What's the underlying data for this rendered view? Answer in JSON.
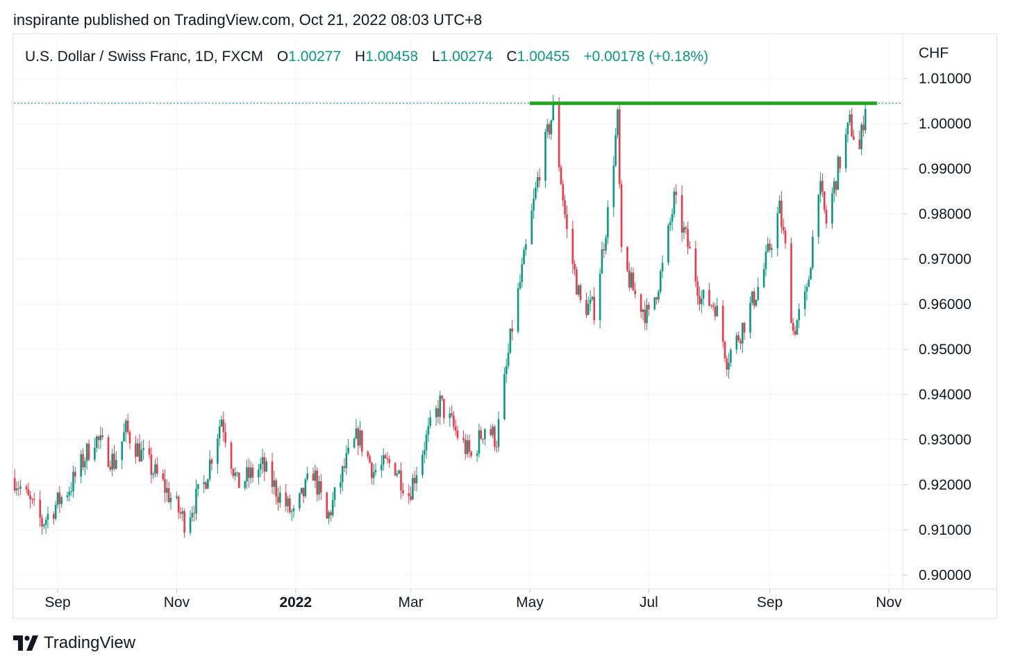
{
  "header": {
    "published_text": "inspirante published on TradingView.com, Oct 21, 2022 08:03 UTC+8"
  },
  "legend": {
    "symbol": "U.S. Dollar / Swiss Franc, 1D, FXCM",
    "open_label": "O",
    "open_value": "1.00277",
    "high_label": "H",
    "high_value": "1.00458",
    "low_label": "L",
    "low_value": "1.00274",
    "close_label": "C",
    "close_value": "1.00455",
    "change": "+0.00178 (+0.18%)"
  },
  "axis": {
    "currency": "CHF"
  },
  "footer": {
    "brand": "TradingView",
    "logo_icon": "tradingview-logo-icon"
  },
  "colors": {
    "up": "#089981",
    "down": "#f23645",
    "resistance": "#22a321",
    "grid": "#f0f3fa"
  },
  "chart_data": {
    "type": "candlestick",
    "title": "U.S. Dollar / Swiss Franc, 1D, FXCM",
    "ylabel": "CHF",
    "ylim": [
      0.895,
      1.012
    ],
    "y_ticks": [
      "1.01000",
      "1.00000",
      "0.99000",
      "0.98000",
      "0.97000",
      "0.96000",
      "0.95000",
      "0.94000",
      "0.93000",
      "0.92000",
      "0.91000",
      "0.90000"
    ],
    "x_ticks": [
      {
        "label": "Sep",
        "date": "2021-09-01"
      },
      {
        "label": "Nov",
        "date": "2021-11-01"
      },
      {
        "label": "2022",
        "date": "2022-01-01",
        "bold": true
      },
      {
        "label": "Mar",
        "date": "2022-03-01"
      },
      {
        "label": "May",
        "date": "2022-05-01"
      },
      {
        "label": "Jul",
        "date": "2022-07-01"
      },
      {
        "label": "Sep",
        "date": "2022-09-01"
      },
      {
        "label": "Nov",
        "date": "2022-11-01"
      }
    ],
    "x_range": [
      "2021-08-10",
      "2022-11-01"
    ],
    "resistance": {
      "value": 1.0045,
      "from": "2022-05-01",
      "to": "2022-10-31"
    },
    "last_price_line": 1.00455,
    "grid": true,
    "close_series": [
      {
        "date": "2021-08-10",
        "close": 0.9215
      },
      {
        "date": "2021-08-24",
        "close": 0.9115
      },
      {
        "date": "2021-09-08",
        "close": 0.92
      },
      {
        "date": "2021-09-20",
        "close": 0.9305
      },
      {
        "date": "2021-09-30",
        "close": 0.925
      },
      {
        "date": "2021-10-06",
        "close": 0.932
      },
      {
        "date": "2021-10-15",
        "close": 0.926
      },
      {
        "date": "2021-10-25",
        "close": 0.92
      },
      {
        "date": "2021-11-05",
        "close": 0.912
      },
      {
        "date": "2021-11-15",
        "close": 0.92
      },
      {
        "date": "2021-11-24",
        "close": 0.935
      },
      {
        "date": "2021-12-02",
        "close": 0.92
      },
      {
        "date": "2021-12-15",
        "close": 0.924
      },
      {
        "date": "2021-12-24",
        "close": 0.9175
      },
      {
        "date": "2021-12-31",
        "close": 0.913
      },
      {
        "date": "2022-01-10",
        "close": 0.923
      },
      {
        "date": "2022-01-17",
        "close": 0.912
      },
      {
        "date": "2022-01-27",
        "close": 0.925
      },
      {
        "date": "2022-02-02",
        "close": 0.931
      },
      {
        "date": "2022-02-10",
        "close": 0.923
      },
      {
        "date": "2022-02-20",
        "close": 0.925
      },
      {
        "date": "2022-02-28",
        "close": 0.918
      },
      {
        "date": "2022-03-08",
        "close": 0.929
      },
      {
        "date": "2022-03-16",
        "close": 0.938
      },
      {
        "date": "2022-03-25",
        "close": 0.931
      },
      {
        "date": "2022-04-01",
        "close": 0.926
      },
      {
        "date": "2022-04-08",
        "close": 0.933
      },
      {
        "date": "2022-04-14",
        "close": 0.93
      },
      {
        "date": "2022-04-22",
        "close": 0.955
      },
      {
        "date": "2022-04-29",
        "close": 0.972
      },
      {
        "date": "2022-05-06",
        "close": 0.99
      },
      {
        "date": "2022-05-13",
        "close": 1.003
      },
      {
        "date": "2022-05-20",
        "close": 0.976
      },
      {
        "date": "2022-05-27",
        "close": 0.96
      },
      {
        "date": "2022-06-03",
        "close": 0.959
      },
      {
        "date": "2022-06-10",
        "close": 0.98
      },
      {
        "date": "2022-06-15",
        "close": 1.001
      },
      {
        "date": "2022-06-17",
        "close": 0.97
      },
      {
        "date": "2022-06-24",
        "close": 0.962
      },
      {
        "date": "2022-07-01",
        "close": 0.957
      },
      {
        "date": "2022-07-08",
        "close": 0.968
      },
      {
        "date": "2022-07-14",
        "close": 0.983
      },
      {
        "date": "2022-07-21",
        "close": 0.973
      },
      {
        "date": "2022-07-28",
        "close": 0.961
      },
      {
        "date": "2022-08-04",
        "close": 0.96
      },
      {
        "date": "2022-08-10",
        "close": 0.948
      },
      {
        "date": "2022-08-15",
        "close": 0.952
      },
      {
        "date": "2022-08-20",
        "close": 0.957
      },
      {
        "date": "2022-08-28",
        "close": 0.966
      },
      {
        "date": "2022-09-06",
        "close": 0.981
      },
      {
        "date": "2022-09-09",
        "close": 0.972
      },
      {
        "date": "2022-09-13",
        "close": 0.954
      },
      {
        "date": "2022-09-20",
        "close": 0.962
      },
      {
        "date": "2022-09-26",
        "close": 0.987
      },
      {
        "date": "2022-09-30",
        "close": 0.978
      },
      {
        "date": "2022-10-06",
        "close": 0.99
      },
      {
        "date": "2022-10-12",
        "close": 1.0
      },
      {
        "date": "2022-10-17",
        "close": 0.994
      },
      {
        "date": "2022-10-20",
        "close": 1.0046
      }
    ]
  }
}
